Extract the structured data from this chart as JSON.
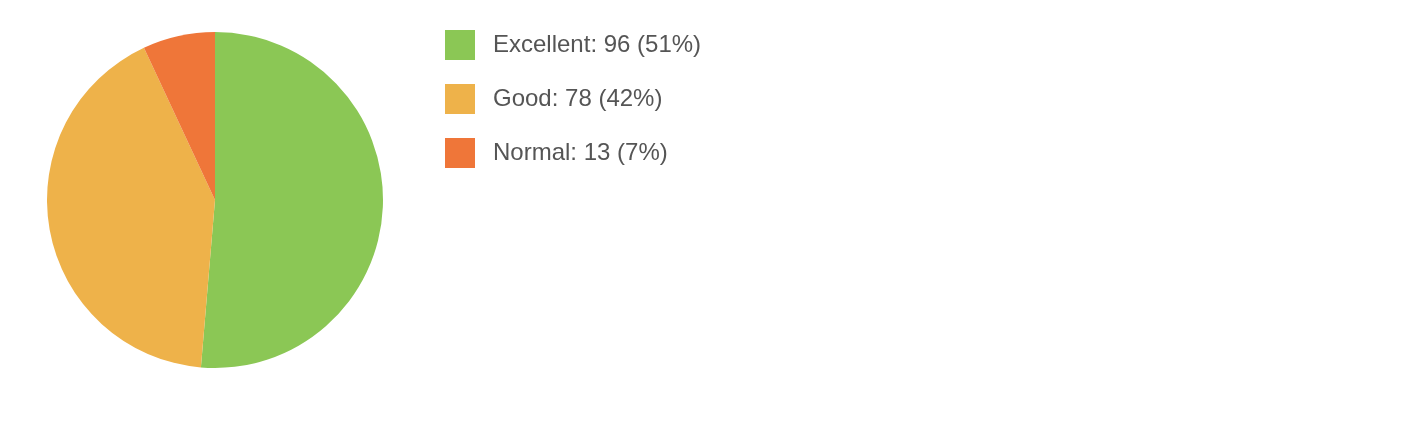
{
  "chart_data": {
    "type": "pie",
    "categories": [
      "Excellent",
      "Good",
      "Normal"
    ],
    "values": [
      96,
      78,
      13
    ],
    "colors": [
      "#8bc755",
      "#eeb24a",
      "#ef7639"
    ],
    "value_labels": [
      "96 (51%)",
      "78 (42%)",
      "13 (7%)"
    ],
    "legend": "right"
  }
}
